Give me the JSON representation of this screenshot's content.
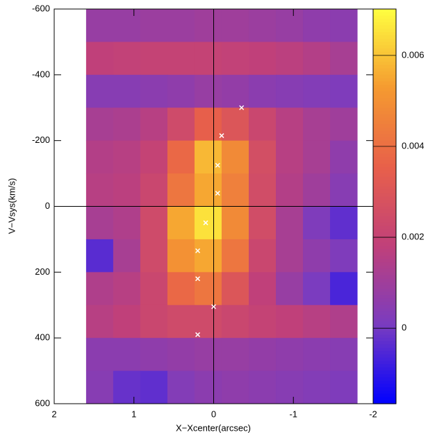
{
  "chart_data": {
    "type": "heatmap",
    "x_label": "X−Xcenter(arcsec)",
    "y_label": "V−Vsys(km/s)",
    "xlim": [
      2,
      -2
    ],
    "ylim": [
      600,
      -600
    ],
    "xticks": [
      2,
      1,
      0,
      -1,
      -2
    ],
    "yticks": [
      600,
      400,
      200,
      0,
      -200,
      -400,
      -600
    ],
    "xbins": [
      1.6,
      1.26,
      0.92,
      0.58,
      0.24,
      -0.1,
      -0.44,
      -0.78,
      -1.12,
      -1.46,
      -1.8
    ],
    "ybins": [
      -600,
      -500,
      -400,
      -300,
      -200,
      -100,
      0,
      100,
      200,
      300,
      400,
      500,
      600
    ],
    "z": [
      [
        0.0008,
        0.0008,
        0.0009,
        0.0009,
        0.001,
        0.001,
        0.0009,
        0.0008,
        0.0006,
        0.0005
      ],
      [
        0.0018,
        0.0019,
        0.002,
        0.002,
        0.002,
        0.0019,
        0.0018,
        0.0017,
        0.0015,
        0.0012
      ],
      [
        0.0004,
        0.0004,
        0.0005,
        0.0006,
        0.0008,
        0.0007,
        0.0005,
        0.0004,
        0.0003,
        0.0002
      ],
      [
        0.0012,
        0.0013,
        0.0016,
        0.0024,
        0.0035,
        0.003,
        0.0022,
        0.0016,
        0.0012,
        0.001
      ],
      [
        0.0015,
        0.0016,
        0.002,
        0.0038,
        0.0058,
        0.0048,
        0.0026,
        0.0016,
        0.0012,
        0.0006
      ],
      [
        0.0016,
        0.0017,
        0.0022,
        0.0042,
        0.0055,
        0.0045,
        0.0025,
        0.0015,
        0.001,
        0.0004
      ],
      [
        0.0012,
        0.0014,
        0.0024,
        0.0055,
        0.0065,
        0.0048,
        0.0025,
        0.0012,
        0.0002,
        -0.0003
      ],
      [
        -0.0004,
        0.0012,
        0.0024,
        0.005,
        0.0055,
        0.0042,
        0.0022,
        0.0012,
        0.0006,
        0.0002
      ],
      [
        0.0014,
        0.0016,
        0.0022,
        0.0038,
        0.0042,
        0.003,
        0.0018,
        0.0008,
        0.0001,
        -0.0006
      ],
      [
        0.0016,
        0.0018,
        0.0022,
        0.0024,
        0.0024,
        0.0022,
        0.002,
        0.0018,
        0.0016,
        0.0014
      ],
      [
        0.0005,
        0.0005,
        0.0006,
        0.0007,
        0.0008,
        0.0008,
        0.0007,
        0.0006,
        0.0005,
        0.0004
      ],
      [
        0.0004,
        -0.0002,
        -0.0003,
        0.0003,
        0.0005,
        0.0006,
        0.0005,
        0.0004,
        0.0003,
        0.0002
      ]
    ],
    "zlim": [
      -0.00166,
      0.00702
    ],
    "zticks": [
      0,
      0.002,
      0.004,
      0.006
    ],
    "colormap": [
      "#0000ff",
      "#7a3cc0",
      "#c0407a",
      "#e8604a",
      "#f59a30",
      "#ffff40"
    ],
    "points": {
      "color": "#ffffff",
      "x": [
        -0.35,
        -0.1,
        -0.05,
        -0.05,
        0.1,
        0.2,
        0.2,
        0,
        0.2
      ],
      "y": [
        -300,
        -215,
        -125,
        -40,
        50,
        135,
        220,
        305,
        390
      ]
    },
    "reference_lines": {
      "x": 0,
      "y": 0
    }
  }
}
